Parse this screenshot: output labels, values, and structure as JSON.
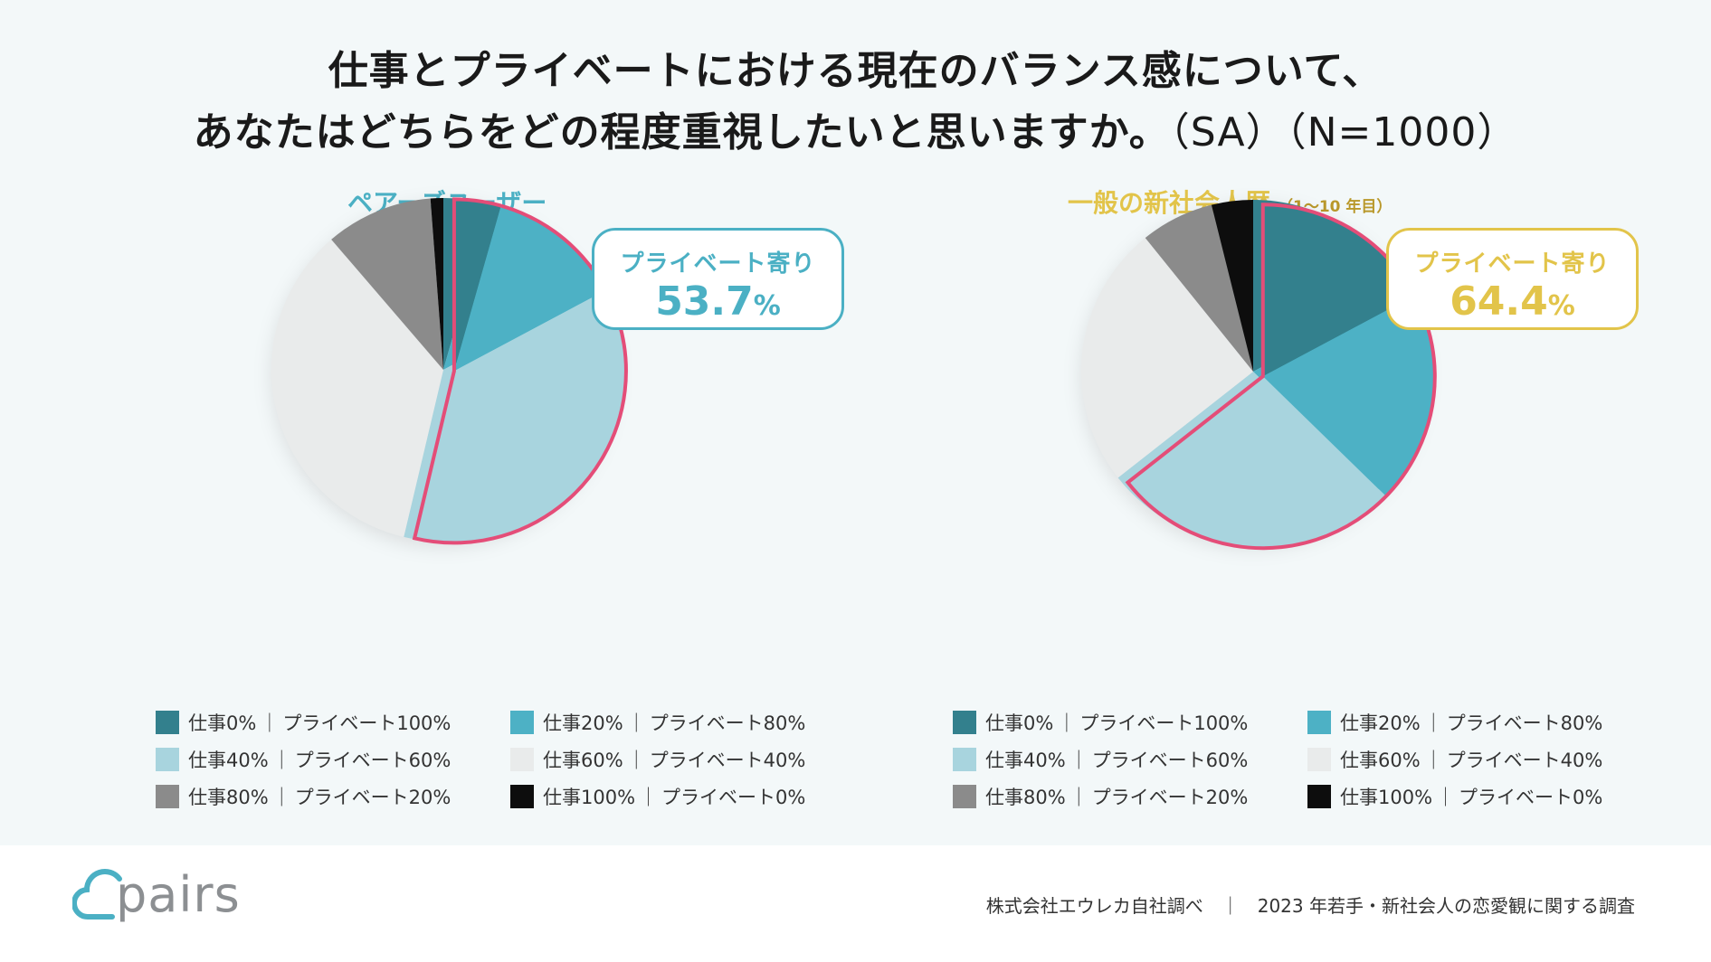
{
  "title": {
    "line1": "仕事とプライベートにおける現在のバランス感について、",
    "line2_main": "あなたはどちらをどの程度重視したいと思いますか。",
    "line2_suffix": "（SA）（N=1000）"
  },
  "colors": {
    "pairs_accent": "#4bb0c4",
    "general_accent": "#e2c44a",
    "highlight_outline": "#e44d78",
    "segment_colors": [
      "#33808d",
      "#4db1c5",
      "#a8d4de",
      "#e9ebeb",
      "#8b8b8b",
      "#0d0d0d"
    ]
  },
  "chart_data": [
    {
      "type": "pie",
      "title": "ペアーズユーザー",
      "subtitle": "",
      "categories": [
        "仕事0%｜プライベート100%",
        "仕事20%｜プライベート80%",
        "仕事40%｜プライベート60%",
        "仕事60%｜プライベート40%",
        "仕事80%｜プライベート20%",
        "仕事100%｜プライベート0%"
      ],
      "values": [
        4.4,
        12.8,
        36.5,
        35.0,
        10.1,
        1.2
      ],
      "start_angle_deg": 0,
      "direction": "clockwise",
      "highlight_segments": [
        0,
        1,
        2
      ],
      "callout": {
        "label": "プライベート寄り",
        "value": "53.7",
        "unit": "%"
      }
    },
    {
      "type": "pie",
      "title": "一般の新社会人歴",
      "subtitle": "（1～10 年目）",
      "categories": [
        "仕事0%｜プライベート100%",
        "仕事20%｜プライベート80%",
        "仕事40%｜プライベート60%",
        "仕事60%｜プライベート40%",
        "仕事80%｜プライベート20%",
        "仕事100%｜プライベート0%"
      ],
      "values": [
        17.2,
        20.1,
        27.1,
        24.8,
        6.9,
        3.9
      ],
      "start_angle_deg": 0,
      "direction": "clockwise",
      "highlight_segments": [
        0,
        1,
        2
      ],
      "callout": {
        "label": "プライベート寄り",
        "value": "64.4",
        "unit": "%"
      }
    }
  ],
  "legend": [
    {
      "work": "仕事0%",
      "sep": "｜",
      "private": "プライベート100%"
    },
    {
      "work": "仕事20%",
      "sep": "｜",
      "private": "プライベート80%"
    },
    {
      "work": "仕事40%",
      "sep": "｜",
      "private": "プライベート60%"
    },
    {
      "work": "仕事60%",
      "sep": "｜",
      "private": "プライベート40%"
    },
    {
      "work": "仕事80%",
      "sep": "｜",
      "private": "プライベート20%"
    },
    {
      "work": "仕事100%",
      "sep": "｜",
      "private": "プライベート0%"
    }
  ],
  "footer": {
    "logo_text": "pairs",
    "source": "株式会社エウレカ自社調べ　｜　2023 年若手・新社会人の恋愛観に関する調査"
  }
}
